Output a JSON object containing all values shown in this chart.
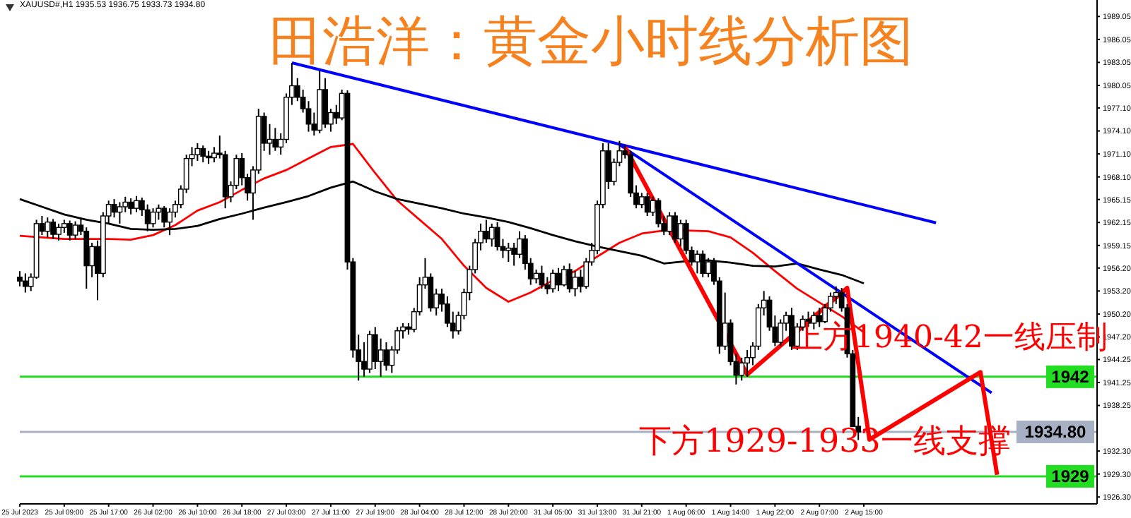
{
  "chart_data": {
    "type": "candlestick",
    "title": "田浩洋：黄金小时线分析图",
    "annotations": [
      "XAUUSD#,H1 1935.53 1936.75 1933.73 1934.80",
      "上方1940-42一线压制",
      "下方1929-1933一线支撑"
    ],
    "categories": [
      "25 Jul 2023",
      null,
      null,
      null,
      null,
      null,
      null,
      null,
      "25 Jul 09:00",
      null,
      null,
      null,
      null,
      null,
      null,
      null,
      "25 Jul 17:00",
      null,
      null,
      null,
      null,
      null,
      null,
      null,
      "26 Jul 02:00",
      null,
      null,
      null,
      null,
      null,
      null,
      null,
      "26 Jul 10:00",
      null,
      null,
      null,
      null,
      null,
      null,
      null,
      "26 Jul 18:00",
      null,
      null,
      null,
      null,
      null,
      null,
      null,
      "27 Jul 03:00",
      null,
      null,
      null,
      null,
      null,
      null,
      null,
      "27 Jul 11:00",
      null,
      null,
      null,
      null,
      null,
      null,
      null,
      "27 Jul 19:00",
      null,
      null,
      null,
      null,
      null,
      null,
      null,
      "28 Jul 04:00",
      null,
      null,
      null,
      null,
      null,
      null,
      null,
      "28 Jul 12:00",
      null,
      null,
      null,
      null,
      null,
      null,
      null,
      "28 Jul 20:00",
      null,
      null,
      null,
      null,
      null,
      null,
      null,
      "31 Jul 05:00",
      null,
      null,
      null,
      null,
      null,
      null,
      null,
      "31 Jul 13:00",
      null,
      null,
      null,
      null,
      null,
      null,
      null,
      "31 Jul 21:00",
      null,
      null,
      null,
      null,
      null,
      null,
      null,
      "1 Aug 06:00",
      null,
      null,
      null,
      null,
      null,
      null,
      null,
      "1 Aug 14:00",
      null,
      null,
      null,
      null,
      null,
      null,
      null,
      "1 Aug 22:00",
      null,
      null,
      null,
      null,
      null,
      null,
      null,
      "2 Aug 07:00",
      null,
      null,
      null,
      null,
      null,
      null,
      null,
      "2 Aug 15:00",
      null,
      null,
      null,
      null,
      null,
      null,
      null,
      null,
      null,
      null,
      null,
      null,
      null,
      null,
      null,
      null,
      null,
      null,
      null,
      null,
      null,
      null,
      null,
      null,
      null,
      null,
      null,
      null,
      null,
      null,
      null,
      null,
      null,
      null,
      null,
      null,
      null,
      null,
      null,
      null,
      null,
      null
    ],
    "ohlc": [
      [
        1955.0,
        1955.8,
        1953.8,
        1954.5
      ],
      [
        1954.5,
        1955.5,
        1953.0,
        1953.8
      ],
      [
        1953.8,
        1955.5,
        1953.2,
        1955.0
      ],
      [
        1955.0,
        1962.5,
        1954.8,
        1962.0
      ],
      [
        1962.0,
        1963.0,
        1960.5,
        1961.0
      ],
      [
        1961.0,
        1962.8,
        1960.2,
        1962.2
      ],
      [
        1962.2,
        1962.6,
        1960.0,
        1960.6
      ],
      [
        1960.6,
        1962.0,
        1959.8,
        1961.5
      ],
      [
        1961.5,
        1962.5,
        1960.8,
        1962.0
      ],
      [
        1962.0,
        1962.4,
        1959.8,
        1960.5
      ],
      [
        1960.5,
        1962.3,
        1960.0,
        1961.8
      ],
      [
        1961.8,
        1962.6,
        1960.5,
        1961.0
      ],
      [
        1961.0,
        1961.5,
        1953.5,
        1956.5
      ],
      [
        1956.5,
        1959.5,
        1955.0,
        1959.0
      ],
      [
        1959.0,
        1959.8,
        1952.0,
        1955.5
      ],
      [
        1955.5,
        1963.5,
        1955.0,
        1963.0
      ],
      [
        1963.0,
        1965.0,
        1962.0,
        1964.5
      ],
      [
        1964.5,
        1965.2,
        1962.8,
        1963.5
      ],
      [
        1963.5,
        1964.8,
        1962.0,
        1964.2
      ],
      [
        1964.2,
        1965.5,
        1963.5,
        1964.8
      ],
      [
        1964.8,
        1965.3,
        1963.2,
        1964.0
      ],
      [
        1964.0,
        1965.6,
        1963.5,
        1965.0
      ],
      [
        1965.0,
        1965.4,
        1963.0,
        1963.8
      ],
      [
        1963.8,
        1964.5,
        1961.0,
        1962.0
      ],
      [
        1962.0,
        1964.0,
        1961.5,
        1963.5
      ],
      [
        1963.5,
        1964.5,
        1962.5,
        1964.0
      ],
      [
        1964.0,
        1964.3,
        1961.5,
        1962.2
      ],
      [
        1962.2,
        1964.0,
        1960.5,
        1963.5
      ],
      [
        1963.5,
        1965.0,
        1962.8,
        1964.5
      ],
      [
        1964.5,
        1967.0,
        1964.0,
        1966.5
      ],
      [
        1966.5,
        1971.0,
        1966.0,
        1970.5
      ],
      [
        1970.5,
        1972.0,
        1969.5,
        1971.0
      ],
      [
        1971.0,
        1972.5,
        1970.2,
        1971.8
      ],
      [
        1971.8,
        1972.2,
        1970.0,
        1970.8
      ],
      [
        1970.8,
        1971.5,
        1969.8,
        1970.6
      ],
      [
        1970.6,
        1972.0,
        1970.0,
        1971.2
      ],
      [
        1971.2,
        1973.5,
        1970.5,
        1971.0
      ],
      [
        1971.0,
        1971.5,
        1964.0,
        1965.5
      ],
      [
        1965.5,
        1967.5,
        1964.8,
        1967.0
      ],
      [
        1967.0,
        1971.0,
        1966.5,
        1970.5
      ],
      [
        1970.5,
        1971.2,
        1967.0,
        1968.0
      ],
      [
        1968.0,
        1968.5,
        1965.0,
        1966.0
      ],
      [
        1966.0,
        1969.5,
        1962.5,
        1969.0
      ],
      [
        1969.0,
        1977.0,
        1968.5,
        1976.0
      ],
      [
        1976.0,
        1976.5,
        1971.5,
        1972.5
      ],
      [
        1972.5,
        1975.0,
        1971.0,
        1973.0
      ],
      [
        1973.0,
        1974.5,
        1971.5,
        1972.0
      ],
      [
        1972.0,
        1973.8,
        1971.0,
        1973.0
      ],
      [
        1973.0,
        1979.0,
        1972.5,
        1978.5
      ],
      [
        1978.5,
        1983.0,
        1977.5,
        1980.0
      ],
      [
        1980.0,
        1981.0,
        1978.0,
        1978.5
      ],
      [
        1978.5,
        1979.5,
        1976.5,
        1977.0
      ],
      [
        1977.0,
        1978.0,
        1974.0,
        1975.0
      ],
      [
        1975.0,
        1976.5,
        1973.5,
        1974.2
      ],
      [
        1974.2,
        1982.0,
        1973.8,
        1979.5
      ],
      [
        1979.5,
        1981.0,
        1974.5,
        1975.0
      ],
      [
        1975.0,
        1977.0,
        1974.0,
        1976.5
      ],
      [
        1976.5,
        1977.5,
        1975.0,
        1975.8
      ],
      [
        1975.8,
        1979.5,
        1975.5,
        1979.0
      ],
      [
        1979.0,
        1979.4,
        1956.0,
        1957.0
      ],
      [
        1957.0,
        1957.5,
        1944.5,
        1945.5
      ],
      [
        1945.5,
        1947.5,
        1941.5,
        1944.0
      ],
      [
        1944.0,
        1946.5,
        1942.0,
        1943.0
      ],
      [
        1943.0,
        1948.0,
        1942.5,
        1947.5
      ],
      [
        1947.5,
        1948.5,
        1943.0,
        1944.0
      ],
      [
        1944.0,
        1947.0,
        1942.0,
        1945.5
      ],
      [
        1945.5,
        1946.5,
        1942.8,
        1943.5
      ],
      [
        1943.5,
        1946.0,
        1942.5,
        1945.5
      ],
      [
        1945.5,
        1948.5,
        1945.0,
        1948.0
      ],
      [
        1948.0,
        1949.0,
        1947.0,
        1948.5
      ],
      [
        1948.5,
        1949.0,
        1947.5,
        1948.2
      ],
      [
        1948.2,
        1951.0,
        1947.8,
        1950.5
      ],
      [
        1950.5,
        1955.0,
        1950.0,
        1954.0
      ],
      [
        1954.0,
        1957.5,
        1953.5,
        1955.0
      ],
      [
        1955.0,
        1955.5,
        1950.5,
        1951.0
      ],
      [
        1951.0,
        1953.5,
        1950.0,
        1952.8
      ],
      [
        1952.8,
        1953.5,
        1950.5,
        1951.5
      ],
      [
        1951.5,
        1952.5,
        1948.5,
        1949.0
      ],
      [
        1949.0,
        1950.5,
        1947.0,
        1948.0
      ],
      [
        1948.0,
        1950.5,
        1947.5,
        1950.0
      ],
      [
        1950.0,
        1953.5,
        1949.5,
        1953.0
      ],
      [
        1953.0,
        1956.5,
        1952.0,
        1956.0
      ],
      [
        1956.0,
        1960.0,
        1955.5,
        1959.5
      ],
      [
        1959.5,
        1962.0,
        1958.5,
        1961.0
      ],
      [
        1961.0,
        1962.5,
        1959.5,
        1960.0
      ],
      [
        1960.0,
        1962.0,
        1959.0,
        1961.5
      ],
      [
        1961.5,
        1962.2,
        1958.5,
        1959.0
      ],
      [
        1959.0,
        1960.0,
        1957.5,
        1958.5
      ],
      [
        1958.5,
        1959.5,
        1957.0,
        1958.8
      ],
      [
        1958.8,
        1959.5,
        1956.5,
        1958.0
      ],
      [
        1958.0,
        1961.0,
        1957.5,
        1960.0
      ],
      [
        1960.0,
        1960.5,
        1956.0,
        1956.8
      ],
      [
        1956.8,
        1957.5,
        1954.0,
        1954.8
      ],
      [
        1954.8,
        1956.0,
        1954.2,
        1955.5
      ],
      [
        1955.5,
        1956.5,
        1953.5,
        1954.0
      ],
      [
        1954.0,
        1955.0,
        1952.8,
        1953.5
      ],
      [
        1953.5,
        1956.0,
        1953.0,
        1955.5
      ],
      [
        1955.5,
        1956.2,
        1953.2,
        1954.0
      ],
      [
        1954.0,
        1956.5,
        1953.8,
        1956.0
      ],
      [
        1956.0,
        1956.8,
        1953.0,
        1953.5
      ],
      [
        1953.5,
        1955.8,
        1952.5,
        1955.0
      ],
      [
        1955.0,
        1956.0,
        1953.0,
        1953.8
      ],
      [
        1953.8,
        1957.5,
        1953.5,
        1957.0
      ],
      [
        1957.0,
        1959.5,
        1956.5,
        1958.5
      ],
      [
        1958.5,
        1965.0,
        1958.0,
        1964.5
      ],
      [
        1964.5,
        1972.5,
        1964.0,
        1971.5
      ],
      [
        1971.5,
        1972.5,
        1966.5,
        1967.5
      ],
      [
        1967.5,
        1970.5,
        1967.0,
        1970.0
      ],
      [
        1970.0,
        1972.8,
        1969.5,
        1971.5
      ],
      [
        1971.5,
        1972.3,
        1970.5,
        1971.0
      ],
      [
        1971.0,
        1971.5,
        1965.5,
        1966.0
      ],
      [
        1966.0,
        1967.0,
        1964.0,
        1964.5
      ],
      [
        1964.5,
        1966.0,
        1964.0,
        1965.5
      ],
      [
        1965.5,
        1966.0,
        1963.0,
        1963.5
      ],
      [
        1963.5,
        1965.5,
        1963.0,
        1965.0
      ],
      [
        1965.0,
        1965.3,
        1961.5,
        1962.0
      ],
      [
        1962.0,
        1963.0,
        1960.5,
        1961.0
      ],
      [
        1961.0,
        1963.5,
        1960.5,
        1963.0
      ],
      [
        1963.0,
        1963.5,
        1959.5,
        1960.0
      ],
      [
        1960.0,
        1962.5,
        1959.0,
        1962.0
      ],
      [
        1962.0,
        1962.5,
        1958.0,
        1958.5
      ],
      [
        1958.5,
        1959.0,
        1956.5,
        1957.0
      ],
      [
        1957.0,
        1958.5,
        1955.5,
        1958.0
      ],
      [
        1958.0,
        1958.5,
        1955.0,
        1955.5
      ],
      [
        1955.5,
        1957.5,
        1955.0,
        1957.0
      ],
      [
        1957.0,
        1957.5,
        1954.0,
        1954.5
      ],
      [
        1954.5,
        1955.0,
        1945.0,
        1946.0
      ],
      [
        1946.0,
        1953.0,
        1945.5,
        1949.0
      ],
      [
        1949.0,
        1949.5,
        1943.5,
        1944.0
      ],
      [
        1944.0,
        1945.0,
        1941.0,
        1942.2
      ],
      [
        1942.2,
        1944.5,
        1941.5,
        1943.8
      ],
      [
        1943.8,
        1945.5,
        1942.0,
        1944.5
      ],
      [
        1944.5,
        1946.5,
        1943.5,
        1946.0
      ],
      [
        1946.0,
        1951.5,
        1945.5,
        1951.0
      ],
      [
        1951.0,
        1953.2,
        1950.0,
        1952.0
      ],
      [
        1952.0,
        1952.5,
        1948.0,
        1948.5
      ],
      [
        1948.5,
        1950.0,
        1946.0,
        1946.5
      ],
      [
        1946.5,
        1949.5,
        1946.0,
        1949.0
      ],
      [
        1949.0,
        1950.5,
        1948.0,
        1950.0
      ],
      [
        1950.0,
        1951.0,
        1945.5,
        1946.0
      ],
      [
        1946.0,
        1949.0,
        1945.5,
        1948.5
      ],
      [
        1948.5,
        1950.0,
        1948.0,
        1949.5
      ],
      [
        1949.5,
        1950.5,
        1948.5,
        1949.0
      ],
      [
        1949.0,
        1950.5,
        1948.2,
        1950.0
      ],
      [
        1950.0,
        1951.0,
        1948.5,
        1949.2
      ],
      [
        1949.2,
        1951.5,
        1949.0,
        1951.0
      ],
      [
        1951.0,
        1953.0,
        1950.5,
        1952.5
      ],
      [
        1952.5,
        1953.8,
        1951.5,
        1953.0
      ],
      [
        1953.0,
        1953.6,
        1950.5,
        1951.0
      ],
      [
        1951.0,
        1951.5,
        1944.5,
        1945.0
      ],
      [
        1945.0,
        1945.5,
        1935.5,
        1935.5
      ],
      [
        1935.53,
        1936.75,
        1933.73,
        1934.8
      ],
      null,
      null,
      null,
      null,
      null,
      null,
      null,
      null,
      null,
      null,
      null,
      null,
      null,
      null,
      null,
      null,
      null,
      null,
      null,
      null,
      null,
      null,
      null,
      null,
      null,
      null,
      null,
      null,
      null,
      null,
      null,
      null,
      null,
      null,
      null,
      null,
      null,
      null,
      null,
      null,
      null,
      null,
      null
    ],
    "series": [
      {
        "type": "line",
        "color": "#ff0000",
        "values": [
          1960.4,
          null,
          null,
          null,
          1960.2,
          null,
          null,
          null,
          1960.0,
          null,
          null,
          null,
          1960.0,
          null,
          null,
          null,
          1960.0,
          null,
          null,
          null,
          1959.9,
          null,
          null,
          null,
          1960.5,
          null,
          null,
          null,
          1961.8,
          null,
          null,
          null,
          1963.7,
          null,
          null,
          null,
          1964.8,
          null,
          null,
          null,
          1966.4,
          null,
          null,
          null,
          1967.9,
          null,
          null,
          null,
          1969.0,
          null,
          null,
          null,
          1970.5,
          null,
          null,
          null,
          1972.0,
          null,
          null,
          null,
          1972.4,
          null,
          null,
          null,
          1968.6,
          null,
          null,
          null,
          1965.0,
          null,
          null,
          null,
          1962.5,
          null,
          null,
          null,
          1960.0,
          null,
          null,
          null,
          1956.5,
          null,
          null,
          null,
          1953.6,
          null,
          null,
          null,
          1951.8,
          null,
          null,
          null,
          1953.0,
          null,
          null,
          null,
          1954.6,
          null,
          null,
          null,
          1955.8,
          null,
          null,
          null,
          1957.7,
          null,
          null,
          null,
          1959.5,
          null,
          null,
          null,
          1960.7,
          null,
          null,
          null,
          1961.1,
          null,
          null,
          null,
          1961.1,
          null,
          null,
          null,
          1961.0,
          null,
          null,
          null,
          1960.2,
          null,
          null,
          null,
          1958.2,
          null,
          null,
          null,
          1955.8,
          null,
          null,
          null,
          1953.5,
          null,
          null,
          null,
          1951.7,
          null,
          null,
          null,
          1949.9,
          null,
          null,
          null,
          1947.8,
          null,
          null,
          null,
          null,
          null,
          null,
          null,
          null,
          null,
          null,
          null,
          null,
          null,
          null,
          null,
          null,
          null,
          null,
          null,
          null,
          null,
          null,
          null,
          null,
          null,
          null,
          null,
          null,
          null,
          null,
          null,
          null,
          null,
          null,
          null,
          null,
          null,
          null,
          null,
          null,
          null,
          null
        ]
      },
      {
        "type": "line",
        "color": "#000000",
        "values": [
          1965.2,
          null,
          null,
          null,
          1964.2,
          null,
          null,
          null,
          1963.2,
          null,
          null,
          null,
          1962.5,
          null,
          null,
          null,
          1962.0,
          null,
          null,
          null,
          1961.3,
          null,
          null,
          null,
          1961.2,
          null,
          null,
          null,
          1961.3,
          null,
          null,
          null,
          1961.7,
          null,
          null,
          null,
          1962.6,
          null,
          null,
          null,
          1963.3,
          null,
          null,
          null,
          1964.1,
          null,
          null,
          null,
          1964.8,
          null,
          null,
          null,
          1965.6,
          null,
          null,
          null,
          1966.7,
          null,
          null,
          null,
          1967.5,
          null,
          null,
          null,
          1966.2,
          null,
          null,
          null,
          1965.2,
          null,
          null,
          null,
          1964.6,
          null,
          null,
          null,
          1964.0,
          null,
          null,
          null,
          1963.3,
          null,
          null,
          null,
          1962.8,
          null,
          null,
          null,
          1962.2,
          null,
          null,
          null,
          1961.4,
          null,
          null,
          null,
          1960.5,
          null,
          null,
          null,
          1959.7,
          null,
          null,
          null,
          1959.0,
          null,
          null,
          null,
          1958.4,
          null,
          null,
          null,
          1957.8,
          null,
          null,
          null,
          1956.8,
          null,
          null,
          null,
          1957.1,
          null,
          null,
          null,
          1957.2,
          null,
          null,
          null,
          1956.9,
          null,
          null,
          null,
          1956.5,
          null,
          null,
          null,
          1956.4,
          null,
          null,
          null,
          1956.8,
          null,
          null,
          null,
          1956.0,
          null,
          null,
          null,
          1955.3,
          null,
          null,
          null,
          1954.2,
          null,
          null,
          null,
          null,
          null,
          null,
          null,
          null,
          null,
          null,
          null,
          null,
          null,
          null,
          null,
          null,
          null,
          null,
          null,
          null,
          null,
          null,
          null,
          null,
          null,
          null,
          null,
          null,
          null,
          null,
          null,
          null,
          null,
          null,
          null,
          null,
          null,
          null,
          null,
          null,
          null,
          null
        ]
      },
      {
        "type": "line",
        "color": "#0000ff",
        "values": [
          null,
          null,
          null,
          null,
          null,
          null,
          null,
          null,
          null,
          null,
          null,
          null,
          null,
          null,
          null,
          null,
          null,
          null,
          null,
          null,
          null,
          null,
          null,
          null,
          null,
          null,
          null,
          null,
          null,
          null,
          null,
          null,
          null,
          null,
          null,
          null,
          null,
          null,
          null,
          null,
          null,
          null,
          null,
          null,
          null,
          null,
          null,
          null,
          null,
          1983.0,
          null,
          null,
          null,
          null,
          null,
          null,
          null,
          null,
          null,
          null,
          null,
          null,
          null,
          null,
          null,
          null,
          null,
          null,
          null,
          null,
          null,
          null,
          null,
          null,
          null,
          null,
          null,
          null,
          null,
          null,
          null,
          null,
          null,
          null,
          null,
          null,
          null,
          null,
          null,
          null,
          null,
          null,
          null,
          null,
          null,
          null,
          null,
          null,
          null,
          null,
          null,
          null,
          null,
          null,
          null,
          null,
          null,
          null,
          null,
          null,
          null,
          null,
          null,
          null,
          null,
          null,
          null,
          null,
          null,
          null,
          null,
          null,
          null,
          null,
          null,
          null,
          null,
          null,
          null,
          null,
          null,
          null,
          null,
          null,
          null,
          null,
          null,
          null,
          null,
          null,
          null,
          null,
          null,
          null,
          null,
          null,
          null,
          null,
          null,
          null,
          null,
          null,
          null,
          null,
          null,
          null,
          null,
          null,
          null,
          null,
          null,
          null,
          null,
          null,
          null,
          1962.1,
          null,
          null,
          null,
          null,
          null,
          null,
          null,
          null,
          null,
          null,
          null,
          null,
          null,
          null,
          null,
          null,
          null,
          null,
          null,
          null,
          null,
          null,
          null,
          null,
          null,
          null,
          null,
          null,
          null
        ]
      },
      {
        "type": "line",
        "color": "#0000ff",
        "values": [
          null,
          null,
          null,
          null,
          null,
          null,
          null,
          null,
          null,
          null,
          null,
          null,
          null,
          null,
          null,
          null,
          null,
          null,
          null,
          null,
          null,
          null,
          null,
          null,
          null,
          null,
          null,
          null,
          null,
          null,
          null,
          null,
          null,
          null,
          null,
          null,
          null,
          null,
          null,
          null,
          null,
          null,
          null,
          null,
          null,
          null,
          null,
          null,
          null,
          null,
          null,
          null,
          null,
          null,
          null,
          null,
          null,
          null,
          null,
          null,
          null,
          null,
          null,
          null,
          null,
          null,
          null,
          null,
          null,
          null,
          null,
          null,
          null,
          null,
          null,
          null,
          null,
          null,
          null,
          null,
          null,
          null,
          null,
          null,
          null,
          null,
          null,
          null,
          null,
          null,
          null,
          null,
          null,
          null,
          null,
          null,
          null,
          null,
          null,
          null,
          null,
          null,
          null,
          null,
          null,
          null,
          null,
          null,
          1972.3,
          null,
          null,
          null,
          null,
          null,
          null,
          null,
          null,
          null,
          null,
          null,
          null,
          null,
          null,
          null,
          null,
          null,
          null,
          null,
          null,
          null,
          null,
          null,
          null,
          null,
          null,
          null,
          null,
          null,
          null,
          null,
          null,
          null,
          null,
          null,
          null,
          null,
          null,
          null,
          null,
          null,
          null,
          null,
          null,
          null,
          null,
          null,
          null,
          null,
          null,
          null,
          null,
          null,
          null,
          null,
          null,
          null,
          null,
          null,
          null,
          null,
          null,
          null,
          null,
          null,
          null,
          1939.9,
          null,
          null,
          null,
          null,
          null,
          null,
          null,
          null,
          null,
          null,
          null,
          null,
          null,
          null,
          null,
          null,
          null,
          null,
          null
        ]
      },
      {
        "type": "line",
        "color": "#ff0000",
        "values": [
          null,
          null,
          null,
          null,
          null,
          null,
          null,
          null,
          null,
          null,
          null,
          null,
          null,
          null,
          null,
          null,
          null,
          null,
          null,
          null,
          null,
          null,
          null,
          null,
          null,
          null,
          null,
          null,
          null,
          null,
          null,
          null,
          null,
          null,
          null,
          null,
          null,
          null,
          null,
          null,
          null,
          null,
          null,
          null,
          null,
          null,
          null,
          null,
          null,
          null,
          null,
          null,
          null,
          null,
          null,
          null,
          null,
          null,
          null,
          null,
          null,
          null,
          null,
          null,
          null,
          null,
          null,
          null,
          null,
          null,
          null,
          null,
          null,
          null,
          null,
          null,
          null,
          null,
          null,
          null,
          null,
          null,
          null,
          null,
          null,
          null,
          null,
          null,
          null,
          null,
          null,
          null,
          null,
          null,
          null,
          null,
          null,
          null,
          null,
          null,
          null,
          null,
          null,
          null,
          null,
          null,
          null,
          null,
          null,
          1972.0,
          null,
          null,
          null,
          null,
          null,
          null,
          null,
          null,
          null,
          null,
          null,
          null,
          null,
          null,
          null,
          null,
          null,
          null,
          null,
          null,
          null,
          1942.3,
          null,
          null,
          null,
          null,
          null,
          null,
          null,
          null,
          null,
          null,
          null,
          null,
          null,
          null,
          null,
          null,
          null,
          1953.6,
          null,
          null,
          null,
          1933.8,
          null,
          null,
          null,
          null,
          null,
          null,
          null,
          null,
          null,
          null,
          null,
          null,
          null,
          null,
          null,
          null,
          null,
          null,
          null,
          1942.6,
          null,
          null,
          1929.2,
          null,
          null,
          null,
          null,
          null,
          null,
          null,
          null,
          null,
          null,
          null,
          null,
          null,
          null,
          null,
          null,
          null,
          null
        ]
      }
    ],
    "ylim": [
      1925.4,
      1991.2
    ],
    "yticks": [
      1989.05,
      1986.05,
      1983.05,
      1980.05,
      {
        "value": 1977.1,
        "label": "1977.10"
      },
      {
        "value": 1974.1,
        "label": "1974.10"
      },
      {
        "value": 1971.1,
        "label": "1971.10"
      },
      {
        "value": 1968.1,
        "label": "1968.10"
      },
      1965.15,
      1962.15,
      1959.15,
      {
        "value": 1956.2,
        "label": "1956.20"
      },
      {
        "value": 1953.2,
        "label": "1953.20"
      },
      {
        "value": 1950.2,
        "label": "1950.20"
      },
      {
        "value": 1947.2,
        "label": "1947.20"
      },
      1944.25,
      1941.25,
      1938.25,
      {
        "value": 1932.3,
        "label": "1932.30"
      },
      {
        "value": 1929.3,
        "label": "1929.30"
      },
      {
        "value": 1926.3,
        "label": "1926.30"
      }
    ],
    "ref_lines": [
      {
        "axis": "y",
        "value": 1942,
        "label": "1942",
        "color": "#22dd22"
      },
      {
        "axis": "y",
        "value": 1929,
        "label": "1929",
        "color": "#22dd22"
      },
      {
        "axis": "y",
        "value": 1934.8,
        "label": "1934.80",
        "color": "#a8b0c4"
      }
    ]
  }
}
